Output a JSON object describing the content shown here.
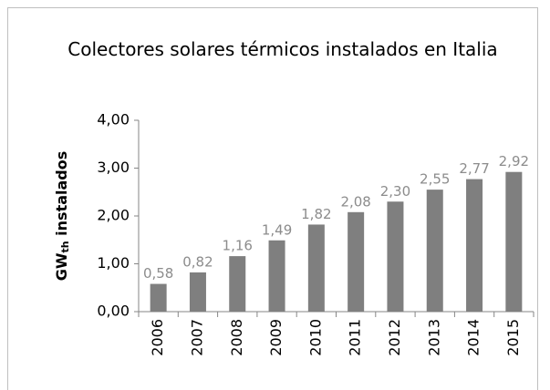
{
  "chart_data": {
    "type": "bar",
    "title": "Colectores solares térmicos instalados en Italia",
    "ylabel": [
      "GW",
      "th",
      " instalados"
    ],
    "categories": [
      "2006",
      "2007",
      "2008",
      "2009",
      "2010",
      "2011",
      "2012",
      "2013",
      "2014",
      "2015"
    ],
    "values": [
      0.58,
      0.82,
      1.16,
      1.49,
      1.82,
      2.08,
      2.3,
      2.55,
      2.77,
      2.92
    ],
    "value_labels": [
      "0,58",
      "0,82",
      "1,16",
      "1,49",
      "1,82",
      "2,08",
      "2,30",
      "2,55",
      "2,77",
      "2,92"
    ],
    "color": "#7f7f7f",
    "ylim": [
      0,
      4
    ],
    "yticks": [
      {
        "value": 0,
        "label": "0,00"
      },
      {
        "value": 1,
        "label": "1,00"
      },
      {
        "value": 2,
        "label": "2,00"
      },
      {
        "value": 3,
        "label": "3,00"
      },
      {
        "value": 4,
        "label": "4,00"
      }
    ],
    "grid": false
  }
}
